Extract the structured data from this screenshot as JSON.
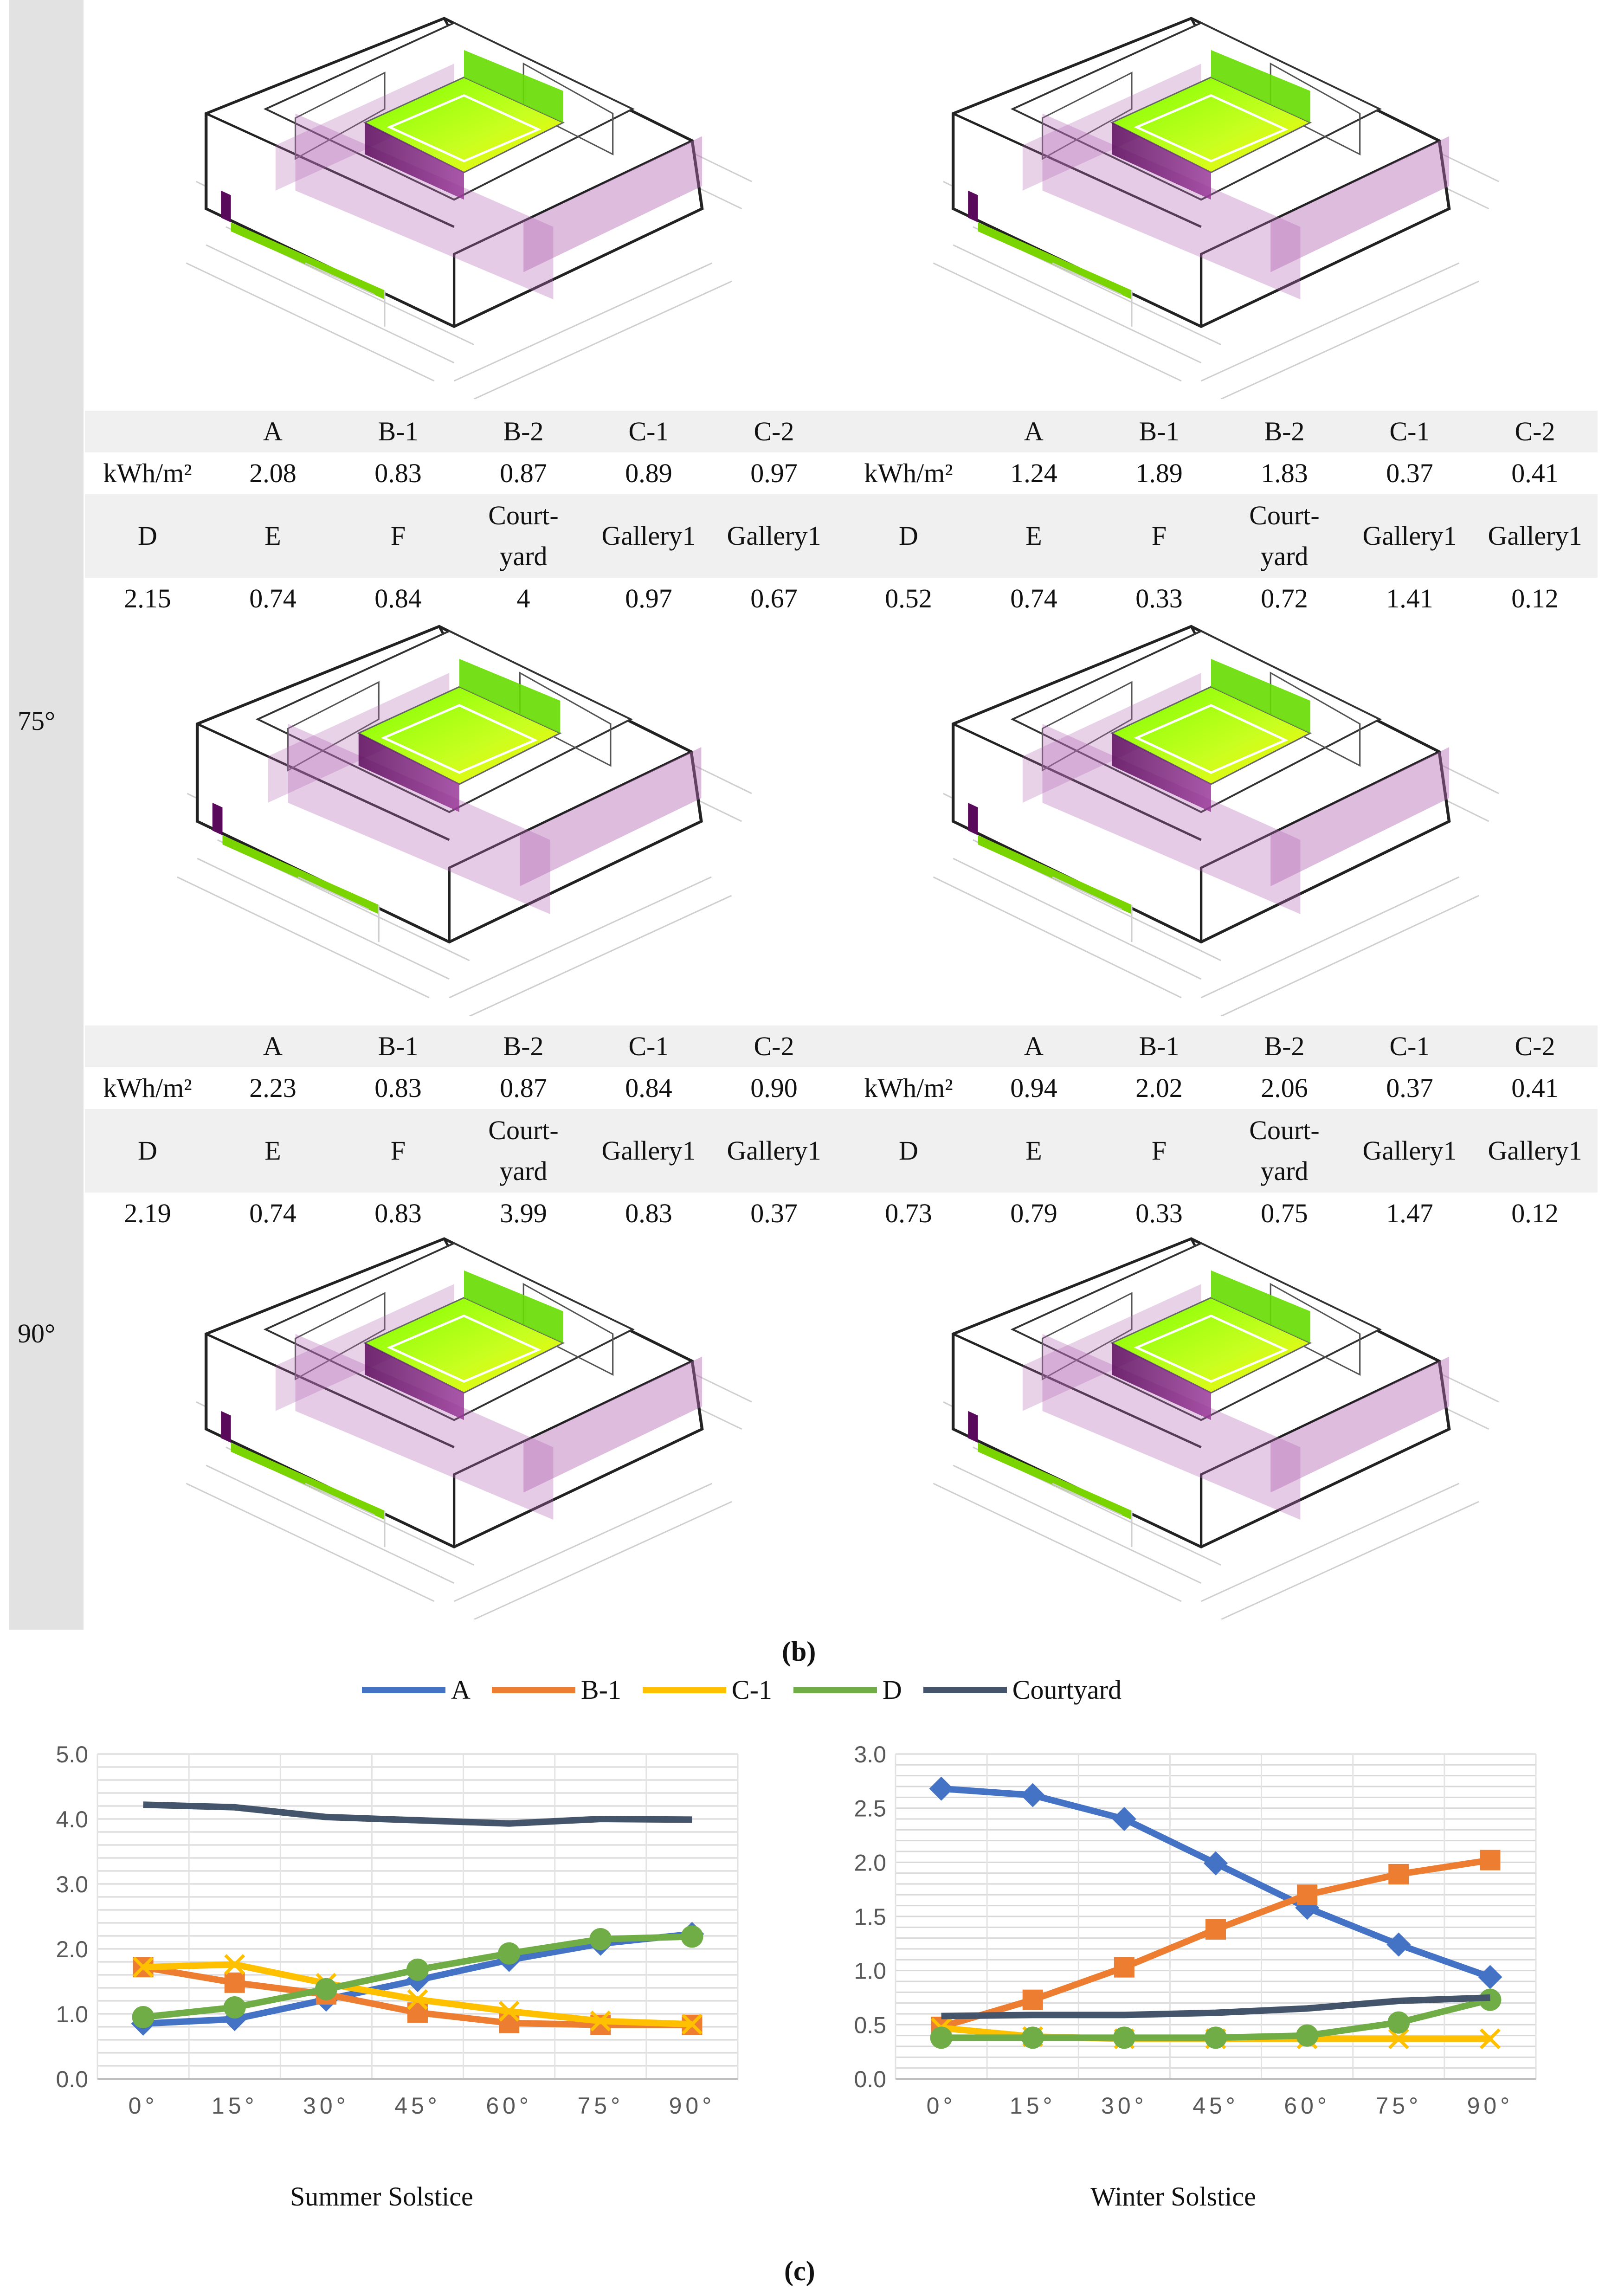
{
  "panel_caption": "(b)",
  "chart_caption": "(c)",
  "angles": {
    "a75": "75°",
    "a90": "90°"
  },
  "tables": [
    {
      "header1": [
        "",
        "A",
        "B-1",
        "B-2",
        "C-1",
        "C-2",
        "",
        "A",
        "B-1",
        "B-2",
        "C-1",
        "C-2"
      ],
      "values1": [
        "kWh/m²",
        "2.08",
        "0.83",
        "0.87",
        "0.89",
        "0.97",
        "kWh/m²",
        "1.24",
        "1.89",
        "1.83",
        "0.37",
        "0.41"
      ],
      "header2": [
        "D",
        "E",
        "F",
        "Court-\nyard",
        "Gallery1",
        "Gallery1",
        "D",
        "E",
        "F",
        "Court-\nyard",
        "Gallery1",
        "Gallery1"
      ],
      "values2": [
        "2.15",
        "0.74",
        "0.84",
        "4",
        "0.97",
        "0.67",
        "0.52",
        "0.74",
        "0.33",
        "0.72",
        "1.41",
        "0.12"
      ]
    },
    {
      "header1": [
        "",
        "A",
        "B-1",
        "B-2",
        "C-1",
        "C-2",
        "",
        "A",
        "B-1",
        "B-2",
        "C-1",
        "C-2"
      ],
      "values1": [
        "kWh/m²",
        "2.23",
        "0.83",
        "0.87",
        "0.84",
        "0.90",
        "kWh/m²",
        "0.94",
        "2.02",
        "2.06",
        "0.37",
        "0.41"
      ],
      "header2": [
        "D",
        "E",
        "F",
        "Court-\nyard",
        "Gallery1",
        "Gallery1",
        "D",
        "E",
        "F",
        "Court-\nyard",
        "Gallery1",
        "Gallery1"
      ],
      "values2": [
        "2.19",
        "0.74",
        "0.83",
        "3.99",
        "0.83",
        "0.37",
        "0.73",
        "0.79",
        "0.33",
        "0.75",
        "1.47",
        "0.12"
      ]
    }
  ],
  "colors": {
    "A": "#4472c4",
    "B-1": "#ed7d31",
    "C-1": "#ffc000",
    "D": "#70ad47",
    "Courtyard": "#44546a"
  },
  "legend": [
    "A",
    "B-1",
    "C-1",
    "D",
    "Courtyard"
  ],
  "chart_data": [
    {
      "type": "line",
      "title": "Summer Solstice",
      "categories": [
        "0°",
        "15°",
        "30°",
        "45°",
        "60°",
        "75°",
        "90°"
      ],
      "yticks": [
        "0.0",
        "1.0",
        "2.0",
        "3.0",
        "4.0",
        "5.0"
      ],
      "ylim": [
        0,
        5
      ],
      "grid_step": 0.2,
      "series": [
        {
          "name": "A",
          "marker": "diamond",
          "values": [
            0.85,
            0.92,
            1.22,
            1.52,
            1.83,
            2.08,
            2.23
          ]
        },
        {
          "name": "B-1",
          "marker": "square",
          "values": [
            1.72,
            1.48,
            1.3,
            1.02,
            0.86,
            0.83,
            0.83
          ]
        },
        {
          "name": "C-1",
          "marker": "x",
          "values": [
            1.72,
            1.76,
            1.47,
            1.22,
            1.04,
            0.89,
            0.84
          ]
        },
        {
          "name": "D",
          "marker": "circle",
          "values": [
            0.95,
            1.1,
            1.38,
            1.68,
            1.93,
            2.15,
            2.19
          ]
        },
        {
          "name": "Courtyard",
          "marker": "none",
          "values": [
            4.22,
            4.18,
            4.03,
            3.98,
            3.93,
            4.0,
            3.99
          ]
        }
      ]
    },
    {
      "type": "line",
      "title": "Winter Solstice",
      "categories": [
        "0°",
        "15°",
        "30°",
        "45°",
        "60°",
        "75°",
        "90°"
      ],
      "yticks": [
        "0.0",
        "0.5",
        "1.0",
        "1.5",
        "2.0",
        "2.5",
        "3.0"
      ],
      "ylim": [
        0,
        3
      ],
      "grid_step": 0.1,
      "series": [
        {
          "name": "A",
          "marker": "diamond",
          "values": [
            2.68,
            2.62,
            2.4,
            1.99,
            1.58,
            1.24,
            0.94
          ]
        },
        {
          "name": "B-1",
          "marker": "square",
          "values": [
            0.48,
            0.73,
            1.03,
            1.38,
            1.7,
            1.89,
            2.02
          ]
        },
        {
          "name": "C-1",
          "marker": "x",
          "values": [
            0.47,
            0.39,
            0.37,
            0.37,
            0.37,
            0.37,
            0.37
          ]
        },
        {
          "name": "D",
          "marker": "circle",
          "values": [
            0.38,
            0.38,
            0.38,
            0.38,
            0.4,
            0.52,
            0.73
          ]
        },
        {
          "name": "Courtyard",
          "marker": "none",
          "values": [
            0.58,
            0.59,
            0.59,
            0.61,
            0.65,
            0.72,
            0.75
          ]
        }
      ]
    }
  ]
}
